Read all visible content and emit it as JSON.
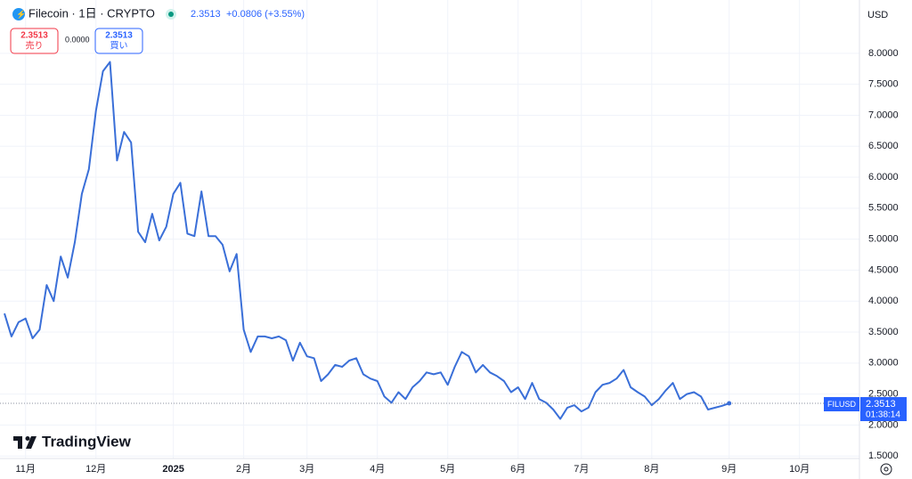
{
  "header": {
    "symbol": "Filecoin · 1日 · CRYPTO",
    "price": "2.3513",
    "change": "+0.0806 (+3.55%)",
    "currency": "USD"
  },
  "trade": {
    "sell_price": "2.3513",
    "sell_label": "売り",
    "spread": "0.0000",
    "buy_price": "2.3513",
    "buy_label": "買い"
  },
  "price_tag": {
    "ticker": "FILUSD",
    "price": "2.3513",
    "countdown": "01:38:14"
  },
  "logo": "TradingView",
  "chart_data": {
    "type": "line",
    "color": "#3a6fd8",
    "categories": [
      null,
      null,
      null,
      "11月",
      null,
      null,
      null,
      null,
      null,
      null,
      null,
      null,
      null,
      "12月",
      null,
      null,
      null,
      null,
      null,
      null,
      null,
      null,
      null,
      null,
      "2025",
      null,
      null,
      null,
      null,
      null,
      null,
      null,
      null,
      null,
      "2月",
      null,
      null,
      null,
      null,
      null,
      null,
      null,
      null,
      "3月",
      null,
      null,
      null,
      null,
      null,
      null,
      null,
      null,
      null,
      "4月",
      null,
      null,
      null,
      null,
      null,
      null,
      null,
      null,
      null,
      "5月",
      null,
      null,
      null,
      null,
      null,
      null,
      null,
      null,
      null,
      "6月",
      null,
      null,
      null,
      null,
      null,
      null,
      null,
      null,
      "7月",
      null,
      null,
      null,
      null,
      null,
      null,
      null,
      null,
      null,
      "8月",
      null,
      null,
      null,
      null,
      null,
      null,
      null,
      null,
      null,
      null,
      "9月",
      null,
      null,
      null,
      null,
      null,
      null,
      null,
      null,
      null,
      "10月"
    ],
    "values": [
      3.8,
      3.43,
      3.66,
      3.72,
      3.4,
      3.54,
      4.26,
      4.0,
      4.72,
      4.38,
      4.95,
      5.73,
      6.13,
      7.07,
      7.71,
      7.86,
      6.27,
      6.73,
      6.56,
      5.12,
      4.95,
      5.41,
      4.98,
      5.2,
      5.73,
      5.91,
      5.09,
      5.05,
      5.77,
      5.05,
      5.05,
      4.91,
      4.48,
      4.76,
      3.54,
      3.18,
      3.43,
      3.43,
      3.4,
      3.43,
      3.37,
      3.04,
      3.33,
      3.11,
      3.08,
      2.71,
      2.82,
      2.97,
      2.94,
      3.04,
      3.08,
      2.82,
      2.75,
      2.71,
      2.46,
      2.36,
      2.53,
      2.42,
      2.61,
      2.71,
      2.85,
      2.82,
      2.85,
      2.65,
      2.94,
      3.18,
      3.11,
      2.85,
      2.97,
      2.85,
      2.79,
      2.71,
      2.53,
      2.61,
      2.42,
      2.68,
      2.42,
      2.36,
      2.25,
      2.1,
      2.28,
      2.32,
      2.22,
      2.28,
      2.53,
      2.65,
      2.68,
      2.75,
      2.89,
      2.61,
      2.53,
      2.46,
      2.32,
      2.42,
      2.56,
      2.68,
      2.42,
      2.5,
      2.53,
      2.46,
      2.25,
      2.28,
      2.31,
      2.3513,
      null,
      null,
      null,
      null,
      null,
      null,
      null,
      null,
      null,
      null
    ],
    "ylim": [
      1.46,
      8.86
    ],
    "yticks": [
      {
        "value": 1.5,
        "label": "1.5000"
      },
      {
        "value": 2,
        "label": "2.0000"
      },
      {
        "value": 2.5,
        "label": "2.5000"
      },
      {
        "value": 3,
        "label": "3.0000"
      },
      {
        "value": 3.5,
        "label": "3.5000"
      },
      {
        "value": 4,
        "label": "4.0000"
      },
      {
        "value": 4.5,
        "label": "4.5000"
      },
      {
        "value": 5,
        "label": "5.0000"
      },
      {
        "value": 5.5,
        "label": "5.5000"
      },
      {
        "value": 6,
        "label": "6.0000"
      },
      {
        "value": 6.5,
        "label": "6.5000"
      },
      {
        "value": 7,
        "label": "7.0000"
      },
      {
        "value": 7.5,
        "label": "7.5000"
      },
      {
        "value": 8,
        "label": "8.0000"
      }
    ],
    "grid": true
  }
}
